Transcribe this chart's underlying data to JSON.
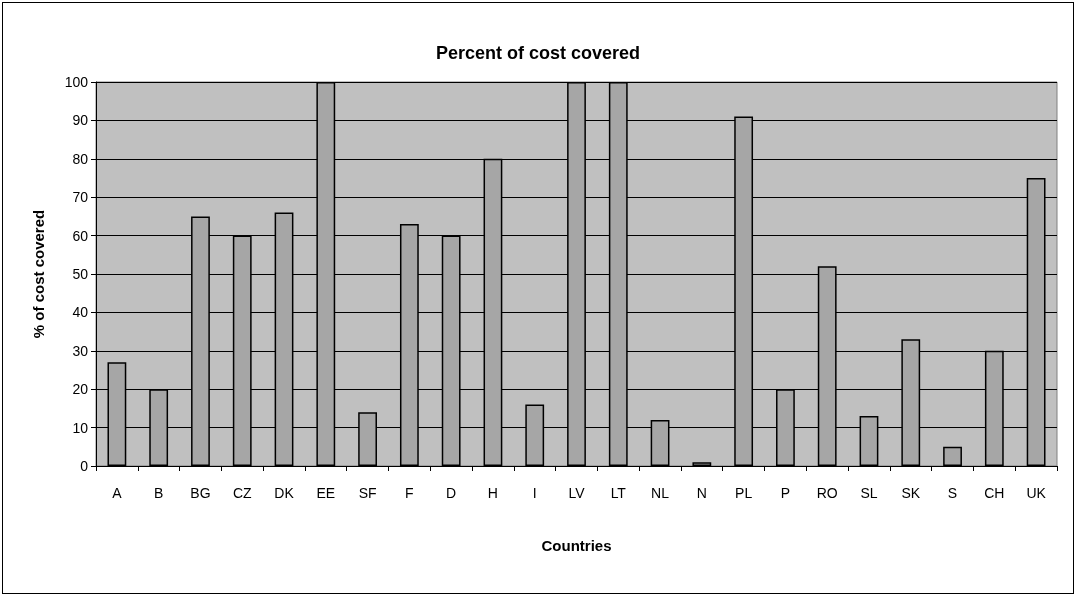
{
  "chart_data": {
    "type": "bar",
    "title": "Percent of cost covered",
    "xlabel": "Countries",
    "ylabel": "% of cost covered",
    "categories": [
      "A",
      "B",
      "BG",
      "CZ",
      "DK",
      "EE",
      "SF",
      "F",
      "D",
      "H",
      "I",
      "LV",
      "LT",
      "NL",
      "N",
      "PL",
      "P",
      "RO",
      "SL",
      "SK",
      "S",
      "CH",
      "UK"
    ],
    "values": [
      27,
      20,
      65,
      60,
      66,
      100,
      14,
      63,
      60,
      80,
      16,
      100,
      100,
      12,
      1,
      91,
      20,
      52,
      13,
      33,
      5,
      30,
      75
    ],
    "color": "#a6a6a6",
    "ylim": [
      0,
      100
    ],
    "yticks": [
      0,
      10,
      20,
      30,
      40,
      50,
      60,
      70,
      80,
      90,
      100
    ],
    "grid": "y"
  }
}
